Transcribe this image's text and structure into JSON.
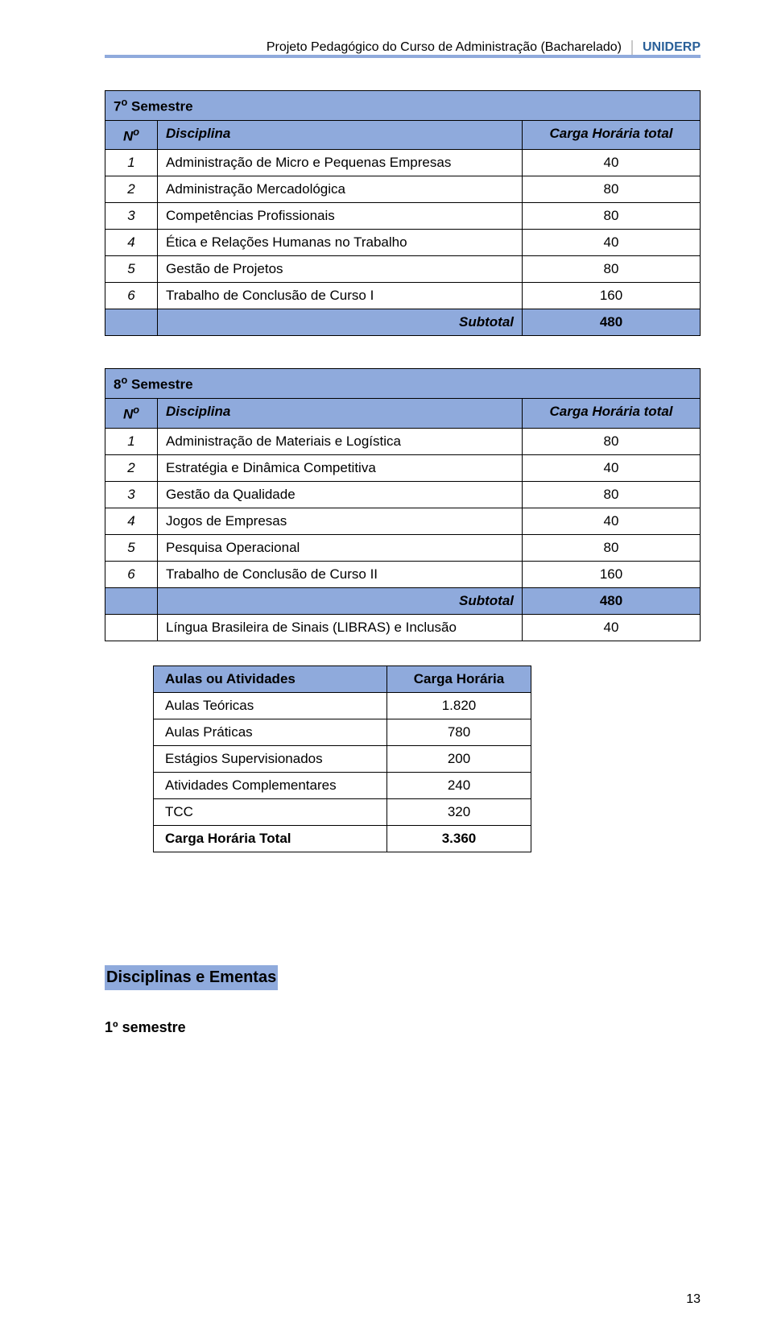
{
  "header": {
    "title": "Projeto Pedagógico do Curso de Administração (Bacharelado)",
    "org": "UNIDERP"
  },
  "colors": {
    "table_header_bg": "#8faadc",
    "border": "#000000",
    "org_text": "#2a6099"
  },
  "table7": {
    "title_prefix": "7",
    "title_sup": "o",
    "title_text": " Semestre",
    "col_n_prefix": "N",
    "col_n_sup": "o",
    "col_disc": "Disciplina",
    "col_carga": "Carga Horária total",
    "rows": [
      {
        "n": "1",
        "disc": "Administração de Micro e Pequenas Empresas",
        "carga": "40"
      },
      {
        "n": "2",
        "disc": "Administração Mercadológica",
        "carga": "80"
      },
      {
        "n": "3",
        "disc": "Competências Profissionais",
        "carga": "80"
      },
      {
        "n": "4",
        "disc": "Ética e Relações Humanas no Trabalho",
        "carga": "40"
      },
      {
        "n": "5",
        "disc": "Gestão de Projetos",
        "carga": "80"
      },
      {
        "n": "6",
        "disc": "Trabalho de Conclusão de Curso I",
        "carga": "160"
      }
    ],
    "subtotal_label": "Subtotal",
    "subtotal_value": "480"
  },
  "table8": {
    "title_prefix": "8",
    "title_sup": "o",
    "title_text": " Semestre",
    "col_n_prefix": "N",
    "col_n_sup": "o",
    "col_disc": "Disciplina",
    "col_carga": "Carga Horária total",
    "rows": [
      {
        "n": "1",
        "disc": "Administração de Materiais e Logística",
        "carga": "80"
      },
      {
        "n": "2",
        "disc": "Estratégia e Dinâmica Competitiva",
        "carga": "40"
      },
      {
        "n": "3",
        "disc": "Gestão da Qualidade",
        "carga": "80"
      },
      {
        "n": "4",
        "disc": "Jogos de Empresas",
        "carga": "40"
      },
      {
        "n": "5",
        "disc": "Pesquisa Operacional",
        "carga": "80"
      },
      {
        "n": "6",
        "disc": "Trabalho de Conclusão de Curso II",
        "carga": "160"
      }
    ],
    "subtotal_label": "Subtotal",
    "subtotal_value": "480",
    "extra_row": {
      "n": "",
      "disc": "Língua Brasileira de Sinais (LIBRAS) e Inclusão",
      "carga": "40"
    }
  },
  "summary": {
    "col1": "Aulas ou Atividades",
    "col2": "Carga Horária",
    "rows": [
      {
        "label": "Aulas Teóricas",
        "value": "1.820"
      },
      {
        "label": "Aulas Práticas",
        "value": "780"
      },
      {
        "label": "Estágios Supervisionados",
        "value": "200"
      },
      {
        "label": "Atividades Complementares",
        "value": "240"
      },
      {
        "label": "TCC",
        "value": "320"
      }
    ],
    "total_label": "Carga Horária Total",
    "total_value": "3.360"
  },
  "section_heading": "Disciplinas  e Ementas",
  "sub_heading": "1º semestre",
  "page_number": "13"
}
